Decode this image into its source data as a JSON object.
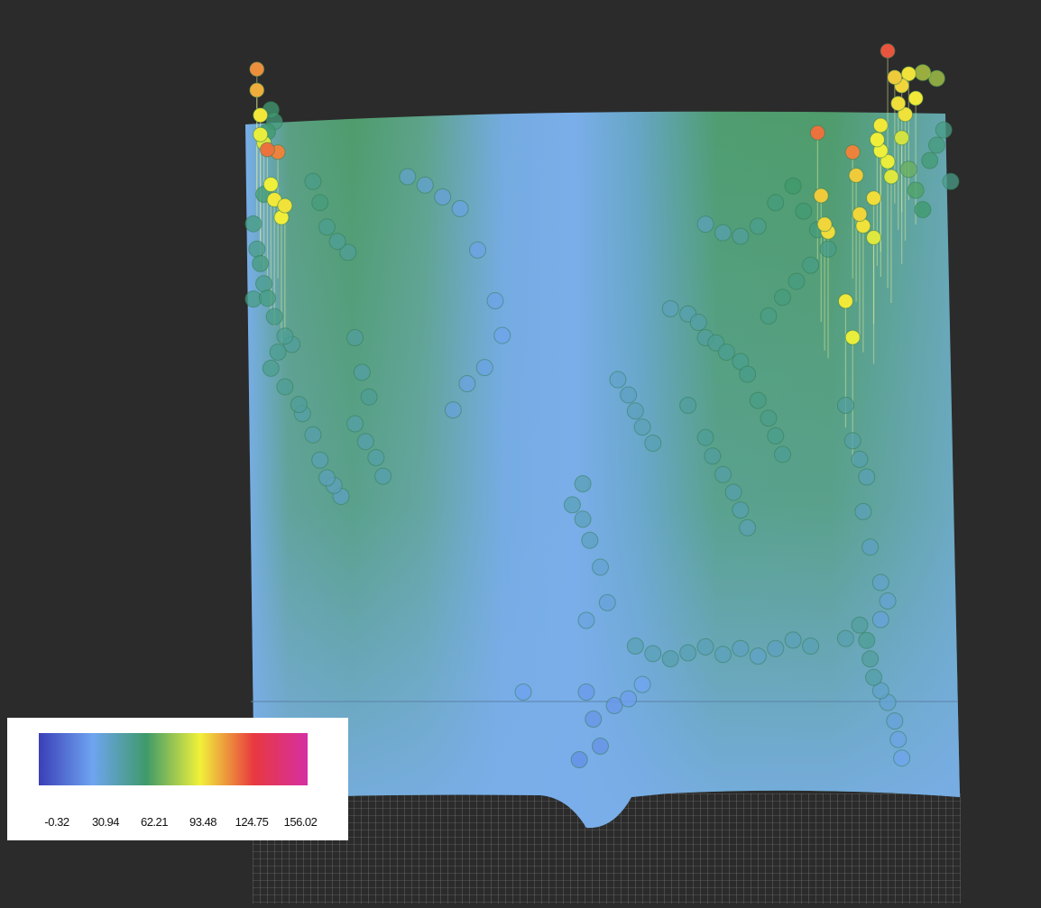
{
  "chart_data": {
    "type": "scatter",
    "title": "",
    "xlabel": "",
    "ylabel": "",
    "grid": true,
    "legend": {
      "position": "bottom-left",
      "colorscale": [
        "#3a3fb8",
        "#6fa4f0",
        "#3e9a6a",
        "#f1f13a",
        "#e8383f",
        "#d62fa3"
      ],
      "ticks": [
        "-0.32",
        "30.94",
        "62.21",
        "93.48",
        "124.75",
        "156.02"
      ],
      "range": [
        -0.32,
        156.02
      ]
    },
    "surface_colors": {
      "base": "#7aaeea",
      "mid": "#4e9e6e",
      "background": "#2b2b2b",
      "grid_line": "#8a8a8a"
    },
    "points": [
      [
        -0.98,
        0.95,
        110
      ],
      [
        -0.98,
        0.9,
        105
      ],
      [
        -0.97,
        0.85,
        95
      ],
      [
        -0.97,
        0.8,
        92
      ],
      [
        -0.96,
        0.78,
        90
      ],
      [
        -0.95,
        0.7,
        115
      ],
      [
        -0.92,
        0.7,
        112
      ],
      [
        -0.94,
        0.65,
        93
      ],
      [
        -0.93,
        0.6,
        95
      ],
      [
        -0.9,
        0.58,
        96
      ],
      [
        -0.91,
        0.55,
        94
      ],
      [
        -0.94,
        0.95,
        60
      ],
      [
        -0.93,
        0.92,
        58
      ],
      [
        -0.95,
        0.88,
        62
      ],
      [
        -0.96,
        0.7,
        60
      ],
      [
        -0.99,
        0.62,
        57
      ],
      [
        -0.98,
        0.55,
        55
      ],
      [
        -0.97,
        0.5,
        58
      ],
      [
        -0.96,
        0.45,
        54
      ],
      [
        -0.99,
        0.4,
        56
      ],
      [
        -0.95,
        0.4,
        57
      ],
      [
        -0.93,
        0.35,
        55
      ],
      [
        -0.9,
        0.3,
        52
      ],
      [
        -0.88,
        0.28,
        50
      ],
      [
        -0.92,
        0.25,
        53
      ],
      [
        -0.94,
        0.2,
        54
      ],
      [
        -0.9,
        0.15,
        52
      ],
      [
        -0.86,
        0.1,
        51
      ],
      [
        -0.82,
        0.75,
        55
      ],
      [
        -0.8,
        0.68,
        58
      ],
      [
        -0.78,
        0.62,
        53
      ],
      [
        -0.75,
        0.58,
        52
      ],
      [
        -0.72,
        0.55,
        51
      ],
      [
        -0.7,
        0.3,
        50
      ],
      [
        -0.68,
        0.2,
        49
      ],
      [
        -0.66,
        0.12,
        52
      ],
      [
        -0.7,
        0.05,
        48
      ],
      [
        -0.67,
        0.0,
        47
      ],
      [
        -0.64,
        -0.05,
        48
      ],
      [
        -0.62,
        -0.1,
        46
      ],
      [
        -0.85,
        0.08,
        48
      ],
      [
        -0.82,
        0.02,
        47
      ],
      [
        -0.8,
        -0.05,
        45
      ],
      [
        -0.78,
        -0.1,
        44
      ],
      [
        -0.76,
        -0.12,
        43
      ],
      [
        -0.74,
        -0.15,
        42
      ],
      [
        -0.55,
        0.8,
        40
      ],
      [
        -0.5,
        0.78,
        38
      ],
      [
        -0.45,
        0.75,
        36
      ],
      [
        -0.4,
        0.72,
        34
      ],
      [
        -0.35,
        0.6,
        33
      ],
      [
        -0.3,
        0.45,
        33
      ],
      [
        -0.28,
        0.35,
        32
      ],
      [
        -0.33,
        0.25,
        34
      ],
      [
        -0.38,
        0.2,
        35
      ],
      [
        -0.42,
        0.12,
        36
      ],
      [
        -0.05,
        -0.12,
        45
      ],
      [
        -0.08,
        -0.18,
        44
      ],
      [
        -0.05,
        -0.22,
        43
      ],
      [
        -0.03,
        -0.28,
        42
      ],
      [
        0.0,
        -0.35,
        38
      ],
      [
        0.02,
        -0.45,
        36
      ],
      [
        -0.04,
        -0.5,
        35
      ],
      [
        0.05,
        0.2,
        40
      ],
      [
        0.08,
        0.15,
        42
      ],
      [
        0.1,
        0.1,
        43
      ],
      [
        0.12,
        0.05,
        44
      ],
      [
        0.15,
        0.0,
        45
      ],
      [
        0.2,
        0.4,
        44
      ],
      [
        0.25,
        0.38,
        46
      ],
      [
        0.28,
        0.35,
        48
      ],
      [
        0.3,
        0.3,
        50
      ],
      [
        0.33,
        0.28,
        52
      ],
      [
        0.36,
        0.25,
        53
      ],
      [
        0.4,
        0.22,
        54
      ],
      [
        0.42,
        0.18,
        55
      ],
      [
        0.45,
        0.1,
        56
      ],
      [
        0.48,
        0.05,
        55
      ],
      [
        0.5,
        0.0,
        54
      ],
      [
        0.52,
        -0.05,
        52
      ],
      [
        0.25,
        0.1,
        50
      ],
      [
        0.3,
        0.0,
        52
      ],
      [
        0.32,
        -0.05,
        50
      ],
      [
        0.35,
        -0.1,
        48
      ],
      [
        0.38,
        -0.15,
        47
      ],
      [
        0.4,
        -0.2,
        46
      ],
      [
        0.42,
        -0.25,
        45
      ],
      [
        0.3,
        0.65,
        44
      ],
      [
        0.35,
        0.62,
        46
      ],
      [
        0.4,
        0.6,
        50
      ],
      [
        0.45,
        0.62,
        54
      ],
      [
        0.5,
        0.68,
        58
      ],
      [
        0.55,
        0.72,
        62
      ],
      [
        0.58,
        0.65,
        60
      ],
      [
        0.62,
        0.6,
        58
      ],
      [
        0.65,
        0.55,
        55
      ],
      [
        0.6,
        0.5,
        56
      ],
      [
        0.56,
        0.45,
        57
      ],
      [
        0.52,
        0.4,
        58
      ],
      [
        0.48,
        0.35,
        56
      ],
      [
        0.62,
        0.75,
        115
      ],
      [
        0.63,
        0.6,
        100
      ],
      [
        0.64,
        0.52,
        98
      ],
      [
        0.65,
        0.5,
        97
      ],
      [
        0.72,
        0.7,
        112
      ],
      [
        0.73,
        0.66,
        100
      ],
      [
        0.74,
        0.55,
        98
      ],
      [
        0.75,
        0.52,
        96
      ],
      [
        0.78,
        0.6,
        97
      ],
      [
        0.78,
        0.5,
        90
      ],
      [
        0.7,
        0.3,
        95
      ],
      [
        0.72,
        0.2,
        92
      ],
      [
        0.82,
        0.98,
        120
      ],
      [
        0.84,
        0.95,
        100
      ],
      [
        0.86,
        0.93,
        98
      ],
      [
        0.88,
        0.97,
        96
      ],
      [
        0.9,
        0.9,
        95
      ],
      [
        0.85,
        0.88,
        97
      ],
      [
        0.87,
        0.85,
        96
      ],
      [
        0.8,
        0.82,
        95
      ],
      [
        0.79,
        0.78,
        94
      ],
      [
        0.8,
        0.75,
        93
      ],
      [
        0.82,
        0.72,
        92
      ],
      [
        0.83,
        0.68,
        90
      ],
      [
        0.86,
        0.8,
        88
      ],
      [
        0.88,
        0.75,
        70
      ],
      [
        0.9,
        0.7,
        65
      ],
      [
        0.92,
        0.65,
        62
      ],
      [
        0.94,
        0.8,
        60
      ],
      [
        0.96,
        0.85,
        58
      ],
      [
        0.98,
        0.9,
        56
      ],
      [
        1.0,
        0.75,
        55
      ],
      [
        0.92,
        1.0,
        85
      ],
      [
        0.96,
        0.99,
        82
      ],
      [
        0.7,
        0.1,
        50
      ],
      [
        0.72,
        0.0,
        48
      ],
      [
        0.74,
        -0.05,
        46
      ],
      [
        0.76,
        -0.1,
        45
      ],
      [
        0.75,
        -0.2,
        44
      ],
      [
        0.77,
        -0.3,
        42
      ],
      [
        0.8,
        -0.4,
        40
      ],
      [
        0.82,
        -0.45,
        38
      ],
      [
        0.8,
        -0.5,
        36
      ],
      [
        0.1,
        -0.6,
        45
      ],
      [
        0.15,
        -0.62,
        44
      ],
      [
        0.2,
        -0.64,
        46
      ],
      [
        0.25,
        -0.62,
        45
      ],
      [
        0.3,
        -0.6,
        44
      ],
      [
        0.35,
        -0.62,
        43
      ],
      [
        0.4,
        -0.6,
        42
      ],
      [
        0.45,
        -0.62,
        41
      ],
      [
        0.5,
        -0.6,
        42
      ],
      [
        0.55,
        -0.58,
        44
      ],
      [
        0.6,
        -0.6,
        45
      ],
      [
        0.7,
        -0.58,
        46
      ],
      [
        0.74,
        -0.55,
        50
      ],
      [
        0.76,
        -0.6,
        52
      ],
      [
        0.77,
        -0.65,
        50
      ],
      [
        0.78,
        -0.7,
        48
      ],
      [
        0.8,
        -0.72,
        40
      ],
      [
        0.82,
        -0.75,
        38
      ],
      [
        0.84,
        -0.8,
        36
      ],
      [
        0.85,
        -0.85,
        34
      ],
      [
        0.86,
        -0.9,
        32
      ],
      [
        -0.04,
        -0.7,
        28
      ],
      [
        -0.02,
        -0.78,
        26
      ],
      [
        0.0,
        -0.86,
        25
      ],
      [
        -0.06,
        -0.9,
        24
      ],
      [
        0.04,
        -0.74,
        27
      ],
      [
        0.08,
        -0.72,
        29
      ],
      [
        -0.22,
        -0.7,
        30
      ],
      [
        0.12,
        -0.68,
        31
      ]
    ]
  }
}
